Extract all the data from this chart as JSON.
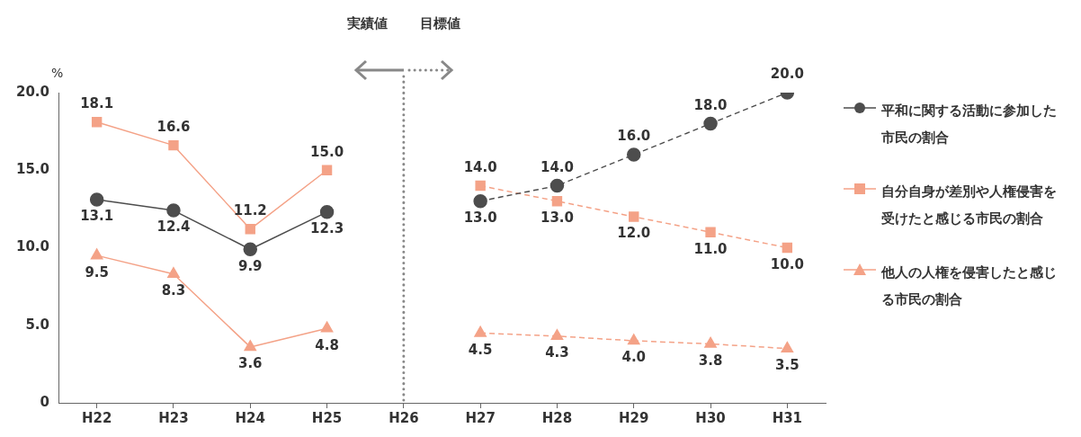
{
  "chart_data": {
    "type": "line",
    "ylabel": "%",
    "categories": [
      "H22",
      "H23",
      "H24",
      "H25",
      "H26",
      "H27",
      "H28",
      "H29",
      "H30",
      "H31"
    ],
    "ylim": [
      0,
      20
    ],
    "yticks": [
      0,
      {
        "value": 5,
        "label": "5.0"
      },
      {
        "value": 10,
        "label": "10.0"
      },
      {
        "value": 15,
        "label": "15.0"
      },
      {
        "value": 20,
        "label": "20.0"
      }
    ],
    "grid": false,
    "legend": "right",
    "ref_lines": [
      {
        "axis": "x",
        "value": "H26",
        "color": "#888888",
        "line_style": "dotted"
      }
    ],
    "annotations": [
      "実績値",
      "目標値"
    ],
    "series": [
      {
        "name": "平和に関する活動に参加した市民の割合",
        "color": "#4d4d4d",
        "marker": "circle",
        "line_style": "solid",
        "values": [
          13.1,
          12.4,
          9.9,
          12.3,
          null,
          null,
          null,
          null,
          null,
          null
        ],
        "value_labels": [
          "13.1",
          "12.4",
          "9.9",
          "12.3",
          null,
          null,
          null,
          null,
          null,
          null
        ]
      },
      {
        "color": "#4d4d4d",
        "marker": "circle",
        "line_style": "dashed",
        "values": [
          null,
          null,
          null,
          null,
          null,
          13.0,
          14.0,
          16.0,
          18.0,
          20.0
        ],
        "value_labels": [
          null,
          null,
          null,
          null,
          null,
          "13.0",
          "14.0",
          "16.0",
          "18.0",
          "20.0"
        ]
      },
      {
        "name": "自分自身が差別や人権侵害を受けたと感じる市民の割合",
        "color": "#f4a287",
        "marker": "square",
        "line_style": "solid",
        "values": [
          18.1,
          16.6,
          11.2,
          15.0,
          null,
          null,
          null,
          null,
          null,
          null
        ],
        "value_labels": [
          "18.1",
          "16.6",
          "11.2",
          "15.0",
          null,
          null,
          null,
          null,
          null,
          null
        ]
      },
      {
        "color": "#f4a287",
        "marker": "square",
        "line_style": "dashed",
        "values": [
          null,
          null,
          null,
          null,
          null,
          14.0,
          13.0,
          12.0,
          11.0,
          10.0
        ],
        "value_labels": [
          null,
          null,
          null,
          null,
          null,
          "14.0",
          "13.0",
          "12.0",
          "11.0",
          "10.0"
        ]
      },
      {
        "name": "他人の人権を侵害したと感じる市民の割合",
        "color": "#f4a287",
        "marker": "triangle",
        "line_style": "solid",
        "values": [
          9.5,
          8.3,
          3.6,
          4.8,
          null,
          null,
          null,
          null,
          null,
          null
        ],
        "value_labels": [
          "9.5",
          "8.3",
          "3.6",
          "4.8",
          null,
          null,
          null,
          null,
          null,
          null
        ]
      },
      {
        "color": "#f4a287",
        "marker": "triangle",
        "line_style": "dashed",
        "values": [
          null,
          null,
          null,
          null,
          null,
          4.5,
          4.3,
          4.0,
          3.8,
          3.5
        ],
        "value_labels": [
          null,
          null,
          null,
          null,
          null,
          "4.5",
          "4.3",
          "4.0",
          "3.8",
          "3.5"
        ]
      }
    ]
  }
}
